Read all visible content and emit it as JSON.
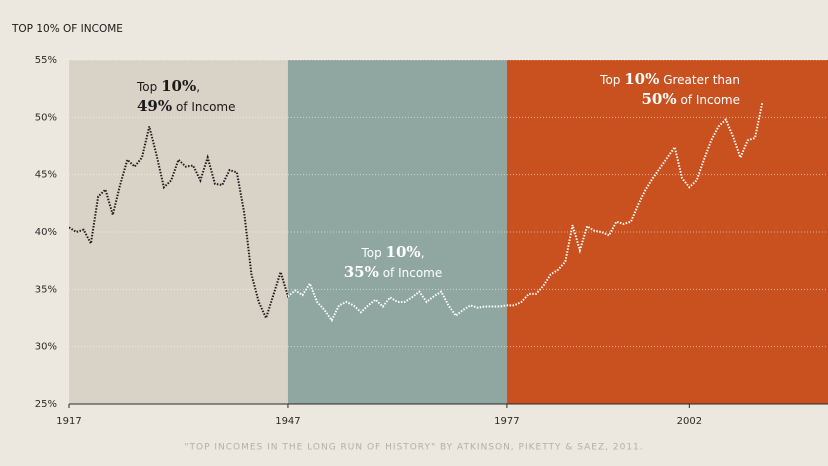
{
  "chart_data": {
    "type": "line",
    "title": "TOP 10% OF INCOME",
    "source": "\"TOP INCOMES IN THE LONG RUN OF HISTORY\" BY ATKINSON, PIKETTY & SAEZ, 2011.",
    "x": [
      1917,
      1918,
      1919,
      1920,
      1921,
      1922,
      1923,
      1924,
      1925,
      1926,
      1927,
      1928,
      1929,
      1930,
      1931,
      1932,
      1933,
      1934,
      1935,
      1936,
      1937,
      1938,
      1939,
      1940,
      1941,
      1942,
      1943,
      1944,
      1945,
      1946,
      1947,
      1948,
      1949,
      1950,
      1951,
      1952,
      1953,
      1954,
      1955,
      1956,
      1957,
      1958,
      1959,
      1960,
      1961,
      1962,
      1963,
      1964,
      1965,
      1966,
      1967,
      1968,
      1969,
      1970,
      1971,
      1972,
      1973,
      1974,
      1975,
      1976,
      1977,
      1978,
      1979,
      1980,
      1981,
      1982,
      1983,
      1984,
      1985,
      1986,
      1987,
      1988,
      1989,
      1990,
      1991,
      1992,
      1993,
      1994,
      1995,
      1996,
      1997,
      1998,
      1999,
      2000,
      2001,
      2002,
      2003,
      2004,
      2005,
      2006,
      2007,
      2008,
      2009,
      2010,
      2011,
      2012
    ],
    "values": [
      40.4,
      40.0,
      40.2,
      39.0,
      43.1,
      43.7,
      41.5,
      44.1,
      46.3,
      45.7,
      46.5,
      49.2,
      46.7,
      43.9,
      44.5,
      46.3,
      45.7,
      45.8,
      44.5,
      46.5,
      44.2,
      44.1,
      45.4,
      45.2,
      41.7,
      36.3,
      33.9,
      32.5,
      34.5,
      36.5,
      34.4,
      34.9,
      34.5,
      35.5,
      33.9,
      33.2,
      32.3,
      33.6,
      33.9,
      33.6,
      33.0,
      33.6,
      34.1,
      33.5,
      34.3,
      33.9,
      33.9,
      34.3,
      34.8,
      33.9,
      34.4,
      34.8,
      33.6,
      32.7,
      33.2,
      33.6,
      33.4,
      33.5,
      33.5,
      33.5,
      33.6,
      33.6,
      33.9,
      34.6,
      34.6,
      35.3,
      36.3,
      36.7,
      37.4,
      40.6,
      38.4,
      40.5,
      40.1,
      40.0,
      39.7,
      40.9,
      40.7,
      40.9,
      42.4,
      43.7,
      44.7,
      45.6,
      46.5,
      47.4,
      44.7,
      43.9,
      44.5,
      46.3,
      48.0,
      49.2,
      49.8,
      48.3,
      46.5,
      48.0,
      48.2,
      51.3
    ],
    "xlim": [
      1917,
      2021
    ],
    "ylim": [
      25,
      55
    ],
    "xticks": [
      1917,
      1947,
      1977,
      2002
    ],
    "yticks": [
      {
        "value": 25,
        "label": "25%"
      },
      {
        "value": 30,
        "label": "30%"
      },
      {
        "value": 35,
        "label": "35%"
      },
      {
        "value": 40,
        "label": "40%"
      },
      {
        "value": 45,
        "label": "45%"
      },
      {
        "value": 50,
        "label": "50%"
      },
      {
        "value": 55,
        "label": "55%"
      }
    ],
    "grid": true,
    "regions": [
      {
        "start": 1917,
        "end": 1947,
        "color": "#d9d2c6",
        "line_color": "#1a1a1a"
      },
      {
        "start": 1947,
        "end": 1977,
        "color": "#8fa6a1",
        "line_color": "#ffffff"
      },
      {
        "start": 1977,
        "end": 2021,
        "color": "#c8511f",
        "line_color": "#ffffff"
      }
    ],
    "annotations": [
      {
        "lines": [
          [
            {
              "text": "Top "
            },
            {
              "text": "10%",
              "bold": true
            },
            {
              "text": ","
            }
          ],
          [
            {
              "text": "49%",
              "bold": true
            },
            {
              "text": " of Income"
            }
          ]
        ],
        "color": "#1a1a1a"
      },
      {
        "lines": [
          [
            {
              "text": "Top "
            },
            {
              "text": "10%",
              "bold": true
            },
            {
              "text": ","
            }
          ],
          [
            {
              "text": "35%",
              "bold": true
            },
            {
              "text": " of Income"
            }
          ]
        ],
        "color": "#ffffff"
      },
      {
        "lines": [
          [
            {
              "text": "Top "
            },
            {
              "text": "10%",
              "bold": true
            },
            {
              "text": " Greater than"
            }
          ],
          [
            {
              "text": "50%",
              "bold": true
            },
            {
              "text": " of Income"
            }
          ]
        ],
        "color": "#ffffff"
      }
    ]
  }
}
